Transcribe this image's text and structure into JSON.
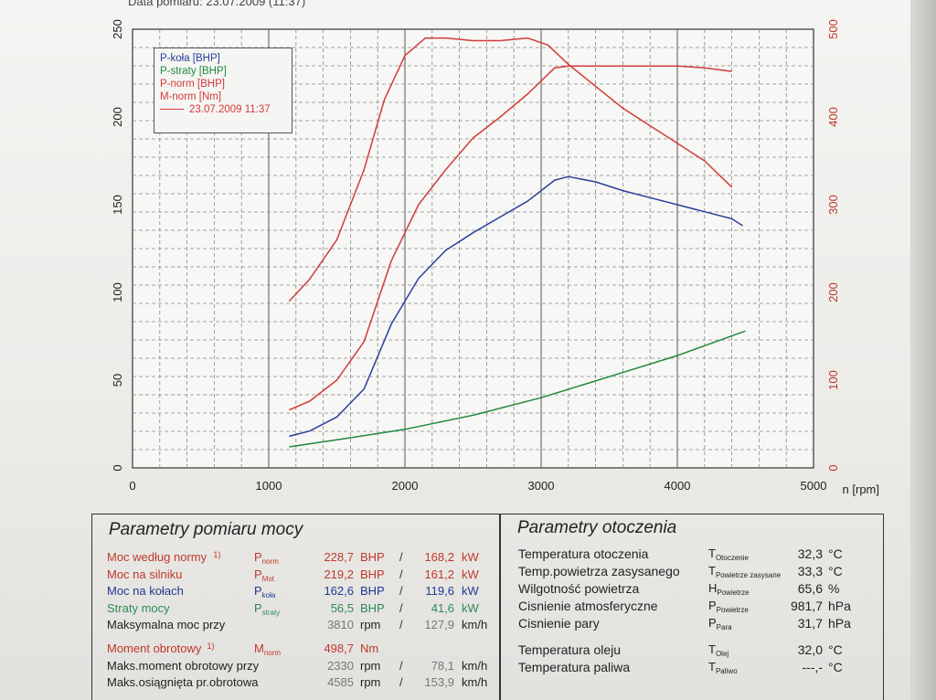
{
  "header": "Data pomiaru: 23.07.2009 (11:37)",
  "chart_data": {
    "type": "line",
    "xlabel": "n [rpm]",
    "x_ticks": [
      "0",
      "1000",
      "2000",
      "3000",
      "4000",
      "5000"
    ],
    "y_left_ticks": [
      "0",
      "50",
      "100",
      "150",
      "200",
      "250"
    ],
    "y_right_ticks": [
      "0",
      "100",
      "200",
      "300",
      "400",
      "500"
    ],
    "xlim": [
      0,
      5000
    ],
    "ylim_left": [
      0,
      250
    ],
    "ylim_right": [
      0,
      500
    ],
    "grid": true,
    "legend_position": "top-left",
    "legend_date": "23.07.2009 11:37",
    "series": [
      {
        "name": "P-koła [BHP]",
        "color": "#2b3f9b",
        "axis": "left",
        "x": [
          1150,
          1300,
          1500,
          1700,
          1900,
          2100,
          2300,
          2500,
          2700,
          2900,
          3100,
          3200,
          3400,
          3600,
          3800,
          4000,
          4200,
          4400,
          4480
        ],
        "y": [
          18,
          21,
          29,
          45,
          82,
          108,
          124,
          134,
          143,
          152,
          164,
          166,
          163,
          158,
          154,
          150,
          146,
          142,
          138
        ]
      },
      {
        "name": "P-straty [BHP]",
        "color": "#1e8a3c",
        "axis": "left",
        "x": [
          1150,
          1500,
          2000,
          2500,
          3000,
          3500,
          4000,
          4500
        ],
        "y": [
          12,
          16,
          22,
          30,
          40,
          52,
          64,
          78
        ]
      },
      {
        "name": "P-norm [BHP]",
        "color": "#d23a3a",
        "axis": "left",
        "x": [
          1150,
          1300,
          1500,
          1700,
          1900,
          2100,
          2300,
          2500,
          2700,
          2900,
          3100,
          3200,
          3400,
          3600,
          3800,
          4000,
          4200,
          4400
        ],
        "y": [
          33,
          38,
          50,
          72,
          118,
          150,
          170,
          188,
          200,
          213,
          228,
          229,
          229,
          229,
          229,
          229,
          228,
          226
        ]
      },
      {
        "name": "M-norm [Nm]",
        "color": "#d23a3a",
        "axis": "right",
        "x": [
          1150,
          1300,
          1500,
          1700,
          1850,
          2000,
          2150,
          2300,
          2500,
          2700,
          2900,
          3050,
          3200,
          3400,
          3600,
          3800,
          4000,
          4200,
          4400
        ],
        "y": [
          190,
          215,
          260,
          340,
          420,
          470,
          490,
          490,
          487,
          487,
          490,
          482,
          460,
          435,
          410,
          390,
          370,
          350,
          320
        ]
      }
    ]
  },
  "params_left": {
    "title": "Parametry pomiaru mocy",
    "rows": [
      {
        "label": "Moc według normy",
        "sup": "1)",
        "sym": "P",
        "sub": "norm",
        "val": "228,7",
        "unit": "BHP",
        "sep": "/",
        "val2": "168,2",
        "unit2": "kW",
        "color": "red"
      },
      {
        "label": "Moc na silniku",
        "sup": "",
        "sym": "P",
        "sub": "Mot",
        "val": "219,2",
        "unit": "BHP",
        "sep": "/",
        "val2": "161,2",
        "unit2": "kW",
        "color": "red"
      },
      {
        "label": "Moc na kołach",
        "sup": "",
        "sym": "P",
        "sub": "koła",
        "val": "162,6",
        "unit": "BHP",
        "sep": "/",
        "val2": "119,6",
        "unit2": "kW",
        "color": "blue"
      },
      {
        "label": "Straty mocy",
        "sup": "",
        "sym": "P",
        "sub": "straty",
        "val": "56,5",
        "unit": "BHP",
        "sep": "/",
        "val2": "41,6",
        "unit2": "kW",
        "color": "green"
      },
      {
        "label": "Maksymalna moc przy",
        "sup": "",
        "sym": "",
        "sub": "",
        "val": "3810",
        "unit": "rpm",
        "sep": "/",
        "val2": "127,9",
        "unit2": "km/h",
        "color": "dark"
      },
      {
        "label": "Moment obrotowy",
        "sup": "1)",
        "sym": "M",
        "sub": "norm",
        "val": "498,7",
        "unit": "Nm",
        "sep": "",
        "val2": "",
        "unit2": "",
        "color": "red"
      },
      {
        "label": "Maks.moment obrotowy przy",
        "sup": "",
        "sym": "",
        "sub": "",
        "val": "2330",
        "unit": "rpm",
        "sep": "/",
        "val2": "78,1",
        "unit2": "km/h",
        "color": "dark"
      },
      {
        "label": "Maks.osiągnięta pr.obrotowa",
        "sup": "",
        "sym": "",
        "sub": "",
        "val": "4585",
        "unit": "rpm",
        "sep": "/",
        "val2": "153,9",
        "unit2": "km/h",
        "color": "dark"
      }
    ]
  },
  "params_right": {
    "title": "Parametry otoczenia",
    "rows": [
      {
        "label": "Temperatura otoczenia",
        "sym": "T",
        "sub": "Otoczenie",
        "val": "32,3",
        "unit": "°C"
      },
      {
        "label": "Temp.powietrza zasysanego",
        "sym": "T",
        "sub": "Powietrze zasysane",
        "val": "33,3",
        "unit": "°C"
      },
      {
        "label": "Wilgotność powietrza",
        "sym": "H",
        "sub": "Powietrze",
        "val": "65,6",
        "unit": "%"
      },
      {
        "label": "Cisnienie atmosferyczne",
        "sym": "P",
        "sub": "Powietrze",
        "val": "981,7",
        "unit": "hPa"
      },
      {
        "label": "Cisnienie pary",
        "sym": "P",
        "sub": "Para",
        "val": "31,7",
        "unit": "hPa"
      },
      {
        "label": "Temperatura oleju",
        "sym": "T",
        "sub": "Olej",
        "val": "32,0",
        "unit": "°C"
      },
      {
        "label": "Temperatura paliwa",
        "sym": "T",
        "sub": "Paliwo",
        "val": "---,-",
        "unit": "°C"
      }
    ]
  }
}
